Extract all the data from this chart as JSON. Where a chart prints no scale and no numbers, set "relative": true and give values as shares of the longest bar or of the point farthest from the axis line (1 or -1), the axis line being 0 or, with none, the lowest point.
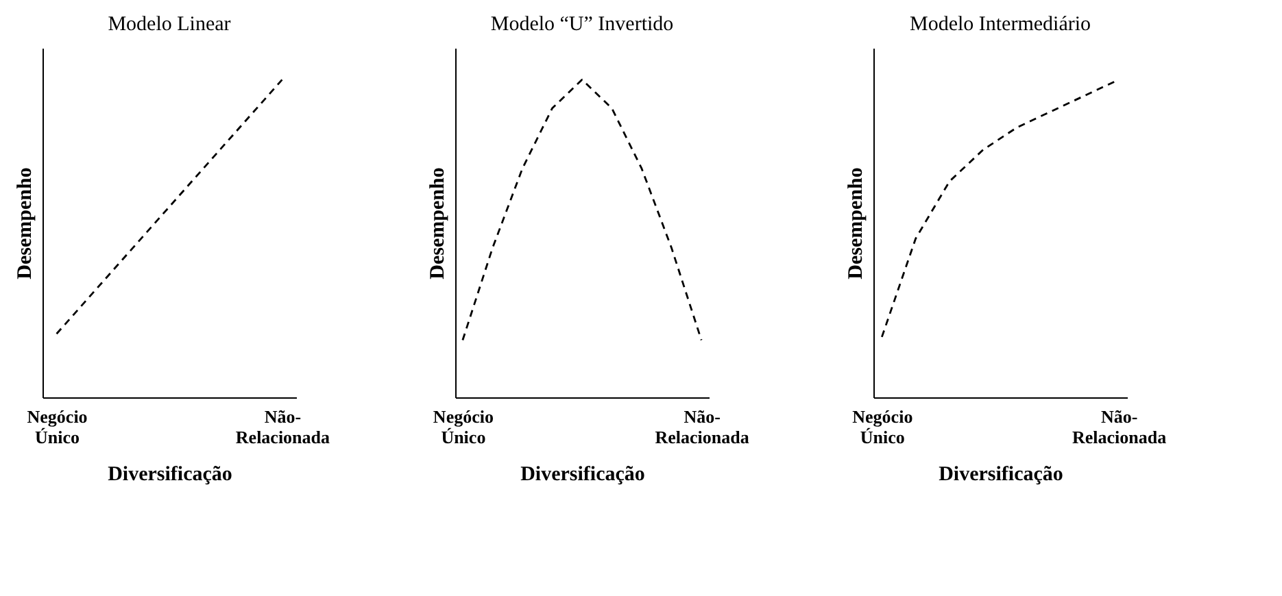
{
  "chart_data": [
    {
      "type": "line",
      "title": "Modelo Linear",
      "xlabel": "Diversificação",
      "ylabel": "Desempenho",
      "relative": true,
      "marker": "none",
      "line_style": "dashed",
      "categories": [
        "Negócio Único",
        null,
        null,
        null,
        "Não-Relacionada"
      ],
      "series": [
        {
          "color": "#000000",
          "values": [
            0.2,
            0.4,
            0.6,
            0.8,
            1.0
          ]
        }
      ]
    },
    {
      "type": "line",
      "title": "Modelo “U” Invertido",
      "xlabel": "Diversificação",
      "ylabel": "Desempenho",
      "relative": true,
      "marker": "none",
      "line_style": "dashed",
      "categories": [
        "Negócio Único",
        null,
        null,
        null,
        null,
        null,
        null,
        null,
        "Não-Relacionada"
      ],
      "series": [
        {
          "color": "#000000",
          "values": [
            0.18,
            0.47,
            0.72,
            0.91,
            1.0,
            0.91,
            0.72,
            0.47,
            0.18
          ]
        }
      ]
    },
    {
      "type": "line",
      "title": "Modelo  Intermediário",
      "xlabel": "Diversificação",
      "ylabel": "Desempenho",
      "relative": true,
      "marker": "none",
      "line_style": "dashed",
      "categories": [
        "Negócio Único",
        null,
        null,
        null,
        null,
        null,
        null,
        "Não-Relacionada"
      ],
      "series": [
        {
          "color": "#000000",
          "values": [
            0.19,
            0.5,
            0.68,
            0.78,
            0.85,
            0.9,
            0.95,
            1.0
          ]
        }
      ]
    }
  ]
}
